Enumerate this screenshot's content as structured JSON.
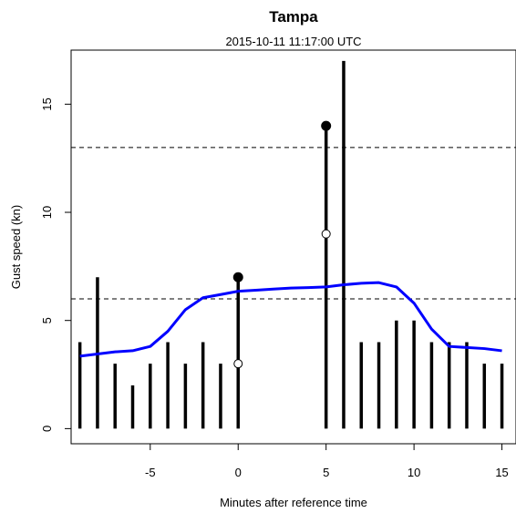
{
  "chart_data": {
    "type": "line",
    "title": "Tampa",
    "subtitle": "2015-10-11 11:17:00 UTC",
    "xlabel": "Minutes after reference time",
    "ylabel": "Gust speed (kn)",
    "xlim": [
      -9.5,
      15.8
    ],
    "ylim": [
      -0.7,
      17.5
    ],
    "xticks": [
      -5,
      0,
      5,
      10,
      15
    ],
    "yticks": [
      0,
      5,
      10,
      15
    ],
    "grid": false,
    "reference_lines": [
      {
        "y": 6,
        "style": "dashed",
        "color": "#000000"
      },
      {
        "y": 13,
        "style": "dashed",
        "color": "#000000"
      }
    ],
    "gust_bars": {
      "x": [
        -9,
        -8,
        -7,
        -6,
        -5,
        -4,
        -3,
        -2,
        -1,
        0,
        5,
        6,
        7,
        8,
        9,
        10,
        11,
        12,
        13,
        14,
        15
      ],
      "values": [
        4,
        7,
        3,
        2,
        3,
        4,
        3,
        4,
        3,
        7,
        14,
        17,
        4,
        4,
        5,
        5,
        4,
        4,
        4,
        3,
        3
      ],
      "color": "#000000"
    },
    "filled_points": {
      "x": [
        0,
        5
      ],
      "values": [
        7,
        14
      ],
      "color": "#000000"
    },
    "open_points": {
      "x": [
        0,
        5
      ],
      "values": [
        3,
        9
      ],
      "color": "#ffffff"
    },
    "series": [
      {
        "x": [
          -9,
          -8,
          -7,
          -6,
          -5,
          -4,
          -3,
          -2,
          -1,
          0,
          1,
          2,
          3,
          4,
          5,
          6,
          7,
          8,
          9,
          10,
          11,
          12,
          13,
          14,
          15
        ],
        "values": [
          3.35,
          3.45,
          3.55,
          3.6,
          3.8,
          4.5,
          5.5,
          6.05,
          6.2,
          6.35,
          6.4,
          6.45,
          6.5,
          6.52,
          6.55,
          6.65,
          6.72,
          6.75,
          6.55,
          5.8,
          4.6,
          3.8,
          3.75,
          3.7,
          3.6
        ],
        "color": "#0000ff"
      }
    ]
  }
}
